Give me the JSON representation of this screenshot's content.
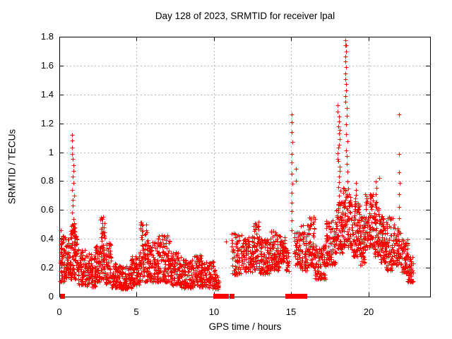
{
  "chart_data": {
    "type": "scatter",
    "title": "Day 128 of 2023, SRMTID for receiver lpal",
    "xlabel": "GPS time / hours",
    "ylabel": "SRMTID / TECUs",
    "xlim": [
      0,
      24
    ],
    "ylim": [
      0,
      1.8
    ],
    "xticks": [
      0,
      5,
      10,
      15,
      20
    ],
    "yticks": [
      0,
      0.2,
      0.4,
      0.6,
      0.8,
      1,
      1.2,
      1.4,
      1.6,
      1.8
    ],
    "grid": true,
    "legend_position": "none",
    "background": "#ffffff",
    "axis_color": "#000000",
    "grid_color": "#b5b5b5",
    "marker": {
      "symbol": "plus",
      "color": "#ff0000",
      "size": 7
    },
    "series": [
      {
        "name": "SRMTID",
        "notable_points": [
          [
            0.88,
            1.11
          ],
          [
            2.75,
            0.55
          ],
          [
            5.5,
            0.52
          ],
          [
            12.7,
            0.53
          ],
          [
            15.05,
            1.27
          ],
          [
            18.1,
            1.3
          ],
          [
            18.55,
            1.77
          ],
          [
            20.7,
            0.82
          ],
          [
            22.0,
            1.26
          ],
          [
            22.0,
            0.99
          ],
          [
            10.8,
            0.38
          ]
        ],
        "density_bands": [
          [
            0.05,
            0.35,
            0.1,
            0.46,
            60
          ],
          [
            0.35,
            0.7,
            0.13,
            0.4,
            55
          ],
          [
            0.7,
            1.15,
            0.12,
            0.52,
            95
          ],
          [
            1.15,
            1.65,
            0.08,
            0.33,
            75
          ],
          [
            1.65,
            2.35,
            0.07,
            0.3,
            95
          ],
          [
            2.35,
            2.65,
            0.1,
            0.36,
            50
          ],
          [
            2.65,
            2.95,
            0.12,
            0.56,
            60
          ],
          [
            2.95,
            3.35,
            0.09,
            0.37,
            60
          ],
          [
            3.35,
            3.95,
            0.06,
            0.23,
            85
          ],
          [
            3.95,
            4.65,
            0.05,
            0.21,
            95
          ],
          [
            4.65,
            5.2,
            0.08,
            0.28,
            85
          ],
          [
            5.2,
            5.7,
            0.1,
            0.53,
            75
          ],
          [
            5.7,
            6.35,
            0.1,
            0.38,
            95
          ],
          [
            6.35,
            7.15,
            0.1,
            0.43,
            115
          ],
          [
            7.15,
            7.85,
            0.08,
            0.31,
            95
          ],
          [
            7.85,
            8.65,
            0.06,
            0.26,
            105
          ],
          [
            8.65,
            9.35,
            0.07,
            0.29,
            95
          ],
          [
            9.35,
            10.05,
            0.06,
            0.25,
            95
          ],
          [
            10.05,
            10.35,
            0.05,
            0.17,
            30
          ],
          [
            11.15,
            11.85,
            0.15,
            0.45,
            75
          ],
          [
            11.85,
            12.55,
            0.17,
            0.42,
            85
          ],
          [
            12.55,
            12.95,
            0.18,
            0.54,
            60
          ],
          [
            12.95,
            13.65,
            0.15,
            0.4,
            95
          ],
          [
            13.65,
            14.25,
            0.18,
            0.46,
            85
          ],
          [
            14.25,
            14.6,
            0.24,
            0.42,
            50
          ],
          [
            14.6,
            14.85,
            0.17,
            0.34,
            25
          ],
          [
            15.2,
            15.6,
            0.22,
            0.46,
            50
          ],
          [
            15.6,
            16.0,
            0.18,
            0.5,
            55
          ],
          [
            16.0,
            16.55,
            0.2,
            0.56,
            75
          ],
          [
            16.55,
            17.25,
            0.12,
            0.36,
            85
          ],
          [
            17.25,
            17.9,
            0.22,
            0.53,
            85
          ],
          [
            17.9,
            18.35,
            0.3,
            0.66,
            75
          ],
          [
            18.35,
            18.9,
            0.34,
            0.76,
            85
          ],
          [
            18.9,
            19.45,
            0.28,
            0.68,
            85
          ],
          [
            19.45,
            19.8,
            0.22,
            0.56,
            60
          ],
          [
            19.8,
            20.35,
            0.34,
            0.72,
            85
          ],
          [
            20.35,
            20.75,
            0.28,
            0.66,
            60
          ],
          [
            20.75,
            21.15,
            0.24,
            0.56,
            70
          ],
          [
            21.15,
            21.65,
            0.18,
            0.56,
            70
          ],
          [
            21.65,
            22.15,
            0.22,
            0.5,
            60
          ],
          [
            22.15,
            22.55,
            0.16,
            0.4,
            60
          ],
          [
            22.55,
            22.9,
            0.1,
            0.28,
            50
          ]
        ],
        "spike_columns": [
          [
            0.88,
            0.5,
            1.12,
            16,
            0.06
          ],
          [
            15.05,
            0.45,
            1.27,
            13,
            0.04
          ],
          [
            15.35,
            0.8,
            0.88,
            2,
            0.04
          ],
          [
            18.1,
            0.7,
            1.32,
            20,
            0.1
          ],
          [
            18.5,
            1.35,
            1.77,
            12,
            0.06
          ],
          [
            18.62,
            0.8,
            1.3,
            10,
            0.05
          ],
          [
            19.15,
            0.6,
            0.78,
            6,
            0.06
          ],
          [
            20.5,
            0.66,
            0.8,
            4,
            0.05
          ],
          [
            22.0,
            0.55,
            0.86,
            5,
            0.03
          ]
        ],
        "isolated_points": [
          [
            10.8,
            0.38
          ],
          [
            20.7,
            0.82
          ],
          [
            22.0,
            0.99
          ],
          [
            22.0,
            1.26
          ],
          [
            18.55,
            1.74
          ]
        ]
      }
    ],
    "data_gap_markers": {
      "symbol": "filled-square",
      "color": "#ff0000",
      "y": 0,
      "x": [
        0.2,
        10.08,
        10.38,
        10.48,
        10.58,
        10.68,
        10.8,
        11.17,
        14.78,
        14.93,
        15.1,
        15.38,
        15.62,
        15.88
      ]
    },
    "render_seed": 42
  }
}
